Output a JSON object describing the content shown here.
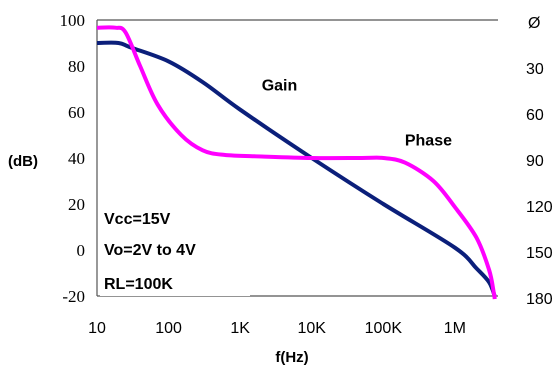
{
  "chart_data": {
    "type": "line",
    "title": "",
    "xlabel": "f(Hz)",
    "ylabel_left": "(dB)",
    "ylabel_right": "Ø",
    "x_scale": "log",
    "xlim": [
      10,
      4000000
    ],
    "ylim_left": [
      -20,
      100
    ],
    "ylim_right": [
      0,
      180
    ],
    "right_axis_inverted": true,
    "grid": false,
    "x_ticks": [
      {
        "value": 10,
        "label": "10"
      },
      {
        "value": 100,
        "label": "100"
      },
      {
        "value": 1000,
        "label": "1K"
      },
      {
        "value": 10000,
        "label": "10K"
      },
      {
        "value": 100000,
        "label": "100K"
      },
      {
        "value": 1000000,
        "label": "1M"
      }
    ],
    "y_ticks_left": [
      {
        "value": 100,
        "label": "100"
      },
      {
        "value": 80,
        "label": "80"
      },
      {
        "value": 60,
        "label": "60"
      },
      {
        "value": 40,
        "label": "40"
      },
      {
        "value": 20,
        "label": "20"
      },
      {
        "value": 0,
        "label": "0"
      },
      {
        "value": -20,
        "label": "-20"
      }
    ],
    "y_ticks_right": [
      {
        "value": 30,
        "label": "30"
      },
      {
        "value": 60,
        "label": "60"
      },
      {
        "value": 90,
        "label": "90"
      },
      {
        "value": 120,
        "label": "120"
      },
      {
        "value": 150,
        "label": "150"
      },
      {
        "value": 180,
        "label": "180"
      }
    ],
    "series": [
      {
        "name": "Gain",
        "axis": "left",
        "color": "#0b1f7a",
        "points": [
          [
            10,
            90
          ],
          [
            20,
            90
          ],
          [
            30,
            88
          ],
          [
            100,
            82
          ],
          [
            300,
            73
          ],
          [
            1000,
            61
          ],
          [
            10000,
            40
          ],
          [
            100000,
            20
          ],
          [
            1000000,
            1
          ],
          [
            2000000,
            -8
          ],
          [
            3000000,
            -14
          ],
          [
            3600000,
            -20
          ]
        ]
      },
      {
        "name": "Phase",
        "axis": "right",
        "color": "#ff00ff",
        "points": [
          [
            10,
            5
          ],
          [
            18,
            5
          ],
          [
            25,
            8
          ],
          [
            40,
            30
          ],
          [
            70,
            55
          ],
          [
            150,
            75
          ],
          [
            300,
            85
          ],
          [
            600,
            88
          ],
          [
            2000,
            89
          ],
          [
            10000,
            90
          ],
          [
            50000,
            90
          ],
          [
            100000,
            90
          ],
          [
            200000,
            93
          ],
          [
            500000,
            105
          ],
          [
            1000000,
            122
          ],
          [
            2000000,
            142
          ],
          [
            3000000,
            163
          ],
          [
            3500000,
            178
          ],
          [
            3600000,
            182
          ]
        ]
      }
    ],
    "annotations": [
      {
        "text": "Gain",
        "x": 2000,
        "y": 72,
        "axis": "left"
      },
      {
        "text": "Phase",
        "x": 200000,
        "y": 48,
        "axis": "left"
      }
    ],
    "conditions": [
      "Vcc=15V",
      "Vo=2V to 4V",
      "RL=100K"
    ]
  }
}
